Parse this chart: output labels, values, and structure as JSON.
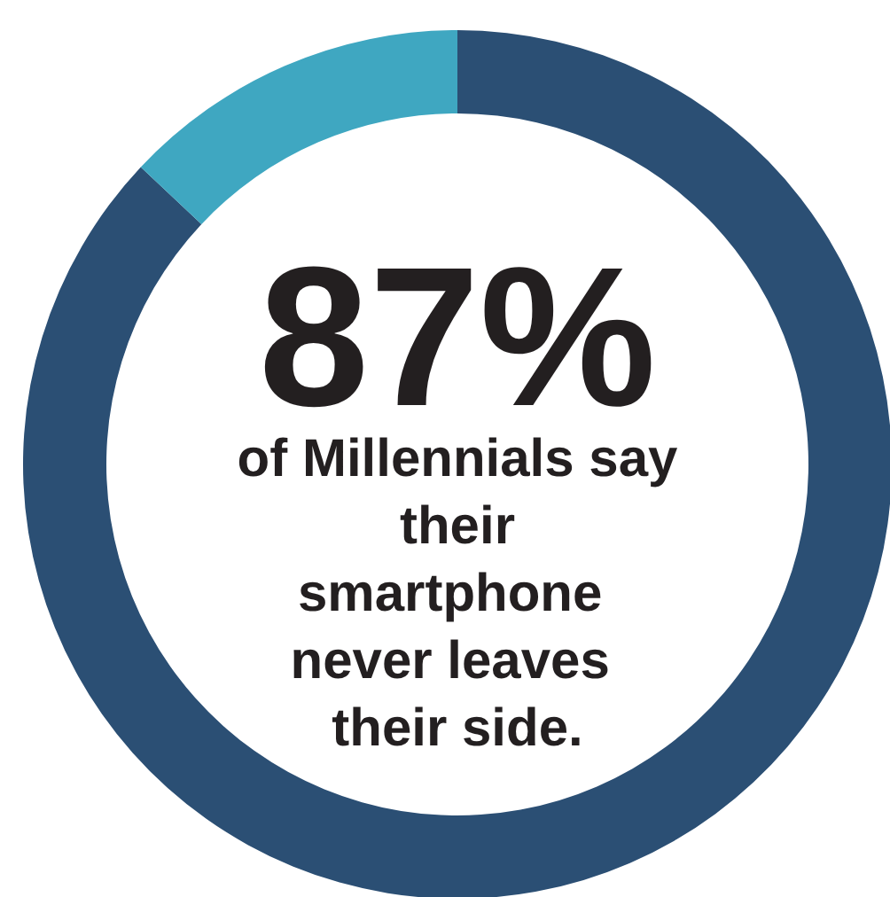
{
  "chart_data": {
    "type": "donut",
    "categories": [
      null,
      null
    ],
    "values": [
      87,
      13
    ],
    "colors": [
      "#2b4f74",
      "#3fa7c1"
    ],
    "annotations": [
      "87%",
      "of Millennials say their smartphone never leaves their side."
    ]
  }
}
